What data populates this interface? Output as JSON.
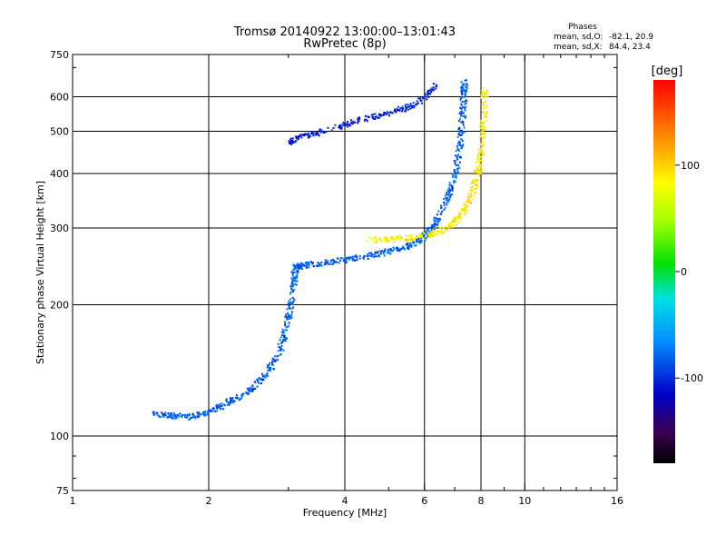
{
  "chart_data": {
    "type": "scatter",
    "title": "Tromsø 20140922 13:00:00–13:01:43",
    "subtitle": "RwPretec (8p)",
    "xlabel": "Frequency [MHz]",
    "ylabel": "Stationary phase Virtual Height [km]",
    "x_scale": "log",
    "y_scale": "log",
    "xlim": [
      1,
      16
    ],
    "ylim": [
      75,
      750
    ],
    "x_ticks": [
      1,
      2,
      4,
      6,
      8,
      10,
      16
    ],
    "x_tick_labels": [
      "1",
      "2",
      "4",
      "6",
      "8",
      "10",
      "16"
    ],
    "y_ticks": [
      75,
      100,
      200,
      300,
      400,
      500,
      600,
      750
    ],
    "y_tick_labels": [
      "75",
      "100",
      "200",
      "300",
      "400",
      "500",
      "600",
      "750"
    ],
    "x_gridlines": [
      2,
      4,
      6,
      8,
      10
    ],
    "y_gridlines": [
      100,
      200,
      300,
      400,
      500,
      600
    ],
    "grid": true,
    "stats": {
      "heading": "Phases",
      "o_label": "mean, sd,O:",
      "o_values": "-82.1, 20.9",
      "x_label": "mean, sd,X:",
      "x_values": "84.4, 23.4"
    },
    "colorbar": {
      "label": "[deg]",
      "range": [
        -180,
        180
      ],
      "ticks": [
        100,
        0,
        -100
      ],
      "tick_labels": [
        "100",
        "0",
        "-100"
      ],
      "colormap": "rainbow: black (-180) → purple → blue → cyan → green → yellow → orange → red (+180)"
    },
    "series": [
      {
        "name": "O",
        "color_phase": -82.1,
        "trace": [
          [
            1.5,
            113
          ],
          [
            1.65,
            112
          ],
          [
            1.8,
            111
          ],
          [
            1.95,
            113
          ],
          [
            2.1,
            117
          ],
          [
            2.3,
            123
          ],
          [
            2.5,
            130
          ],
          [
            2.7,
            141
          ],
          [
            2.85,
            156
          ],
          [
            2.95,
            175
          ],
          [
            3.02,
            200
          ],
          [
            3.07,
            225
          ],
          [
            3.1,
            245
          ],
          [
            3.2,
            247
          ],
          [
            3.5,
            250
          ],
          [
            4.0,
            255
          ],
          [
            4.5,
            260
          ],
          [
            5.0,
            266
          ],
          [
            5.5,
            274
          ],
          [
            5.9,
            285
          ],
          [
            6.2,
            300
          ],
          [
            6.5,
            325
          ],
          [
            6.8,
            365
          ],
          [
            7.0,
            410
          ],
          [
            7.15,
            470
          ],
          [
            7.25,
            540
          ],
          [
            7.3,
            610
          ],
          [
            7.32,
            650
          ]
        ]
      },
      {
        "name": "X",
        "color_phase": 84.4,
        "trace": [
          [
            4.5,
            283
          ],
          [
            5.0,
            284
          ],
          [
            5.5,
            285
          ],
          [
            6.0,
            289
          ],
          [
            6.5,
            297
          ],
          [
            7.0,
            312
          ],
          [
            7.3,
            330
          ],
          [
            7.6,
            360
          ],
          [
            7.8,
            395
          ],
          [
            7.95,
            440
          ],
          [
            8.05,
            500
          ],
          [
            8.1,
            560
          ],
          [
            8.12,
            630
          ]
        ]
      },
      {
        "name": "upper trace",
        "color_phase": -105,
        "trace": [
          [
            3.0,
            470
          ],
          [
            3.2,
            490
          ],
          [
            3.5,
            500
          ],
          [
            4.0,
            520
          ],
          [
            4.5,
            540
          ],
          [
            5.0,
            555
          ],
          [
            5.5,
            570
          ],
          [
            6.0,
            600
          ],
          [
            6.3,
            640
          ]
        ]
      }
    ]
  }
}
